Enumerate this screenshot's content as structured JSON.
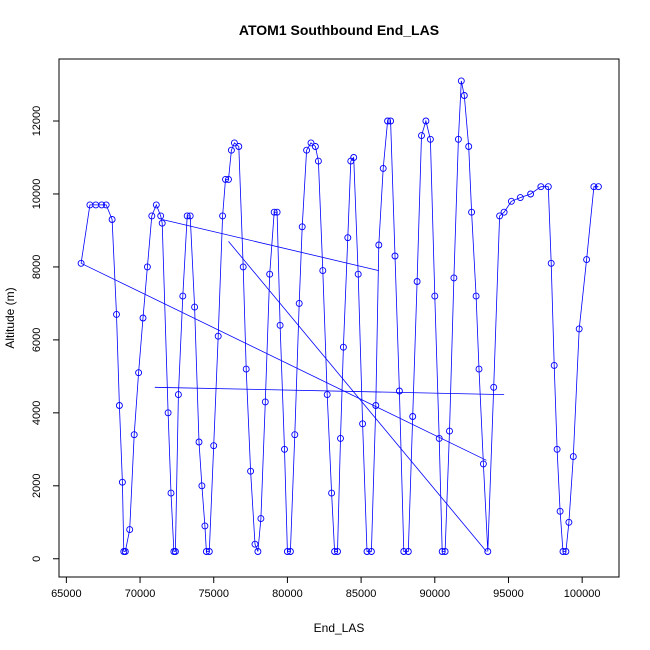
{
  "chart_data": {
    "type": "scatter",
    "title": "ATOM1 Southbound End_LAS",
    "xlabel": "End_LAS",
    "ylabel": "Altitude (m)",
    "xlim": [
      64500,
      102500
    ],
    "ylim": [
      -500,
      13700
    ],
    "xticks": [
      65000,
      70000,
      75000,
      80000,
      85000,
      90000,
      95000,
      100000
    ],
    "yticks": [
      0,
      2000,
      4000,
      6000,
      8000,
      10000,
      12000
    ],
    "grid": false,
    "legend": "none",
    "series_color": "#0000FF",
    "x": [
      66000,
      66600,
      67000,
      67400,
      67700,
      68100,
      68400,
      68600,
      68800,
      68900,
      69000,
      69300,
      69600,
      69900,
      70200,
      70500,
      70800,
      71100,
      71400,
      71500,
      71900,
      72100,
      72300,
      72400,
      72600,
      72900,
      73200,
      73400,
      73700,
      74000,
      74200,
      74400,
      74500,
      74700,
      75000,
      75300,
      75600,
      75800,
      76000,
      76200,
      76400,
      76700,
      77000,
      77200,
      77500,
      77800,
      78000,
      78200,
      78500,
      78800,
      79100,
      79300,
      79500,
      79800,
      80000,
      80200,
      80500,
      80800,
      81000,
      81300,
      81600,
      81900,
      82100,
      82400,
      82700,
      83000,
      83200,
      83400,
      83600,
      83800,
      84100,
      84300,
      84500,
      84800,
      85100,
      85400,
      85700,
      86000,
      86200,
      86500,
      86800,
      87000,
      87300,
      87600,
      87900,
      88200,
      88500,
      88800,
      89100,
      89400,
      89700,
      90000,
      90300,
      90500,
      90700,
      91000,
      91300,
      91600,
      91800,
      92000,
      92300,
      92500,
      92800,
      93000,
      93300,
      93600,
      94000,
      94400,
      94700,
      95200,
      95800,
      96500,
      97200,
      97700,
      97900,
      98100,
      98300,
      98500,
      98700,
      98900,
      99100,
      99400,
      99800,
      100300,
      100800,
      101100
    ],
    "y": [
      8100,
      9700,
      9700,
      9700,
      9700,
      9300,
      6700,
      4200,
      2100,
      200,
      200,
      800,
      3400,
      5100,
      6600,
      8000,
      9400,
      9700,
      9400,
      9200,
      4000,
      1800,
      200,
      200,
      4500,
      7200,
      9400,
      9400,
      6900,
      3200,
      2000,
      900,
      200,
      200,
      3100,
      6100,
      9400,
      10400,
      10400,
      11200,
      11400,
      11300,
      8000,
      5200,
      2400,
      400,
      200,
      1100,
      4300,
      7800,
      9500,
      9500,
      6400,
      3000,
      200,
      200,
      3400,
      7000,
      9100,
      11200,
      11400,
      11300,
      10900,
      7900,
      4500,
      1800,
      200,
      200,
      3300,
      5800,
      8800,
      10900,
      11000,
      7800,
      3700,
      200,
      200,
      4200,
      8600,
      10700,
      12000,
      12000,
      8300,
      4600,
      200,
      200,
      3900,
      7600,
      11600,
      12000,
      11500,
      7200,
      3300,
      200,
      200,
      3500,
      7700,
      11500,
      13100,
      12700,
      11300,
      9500,
      7200,
      5200,
      2600,
      200,
      4700,
      9400,
      9500,
      9800,
      9900,
      10000,
      10200,
      10200,
      8100,
      5300,
      3000,
      1300,
      200,
      200,
      1000,
      2800,
      6300,
      8200,
      10200,
      10200
    ],
    "extra_lines": [
      {
        "x": [
          66000,
          93500
        ],
        "y": [
          8100,
          2700
        ]
      },
      {
        "x": [
          71000,
          94700
        ],
        "y": [
          4700,
          4500
        ]
      },
      {
        "x": [
          71500,
          86200
        ],
        "y": [
          9300,
          7900
        ]
      },
      {
        "x": [
          76000,
          93500
        ],
        "y": [
          8700,
          200
        ]
      }
    ]
  }
}
